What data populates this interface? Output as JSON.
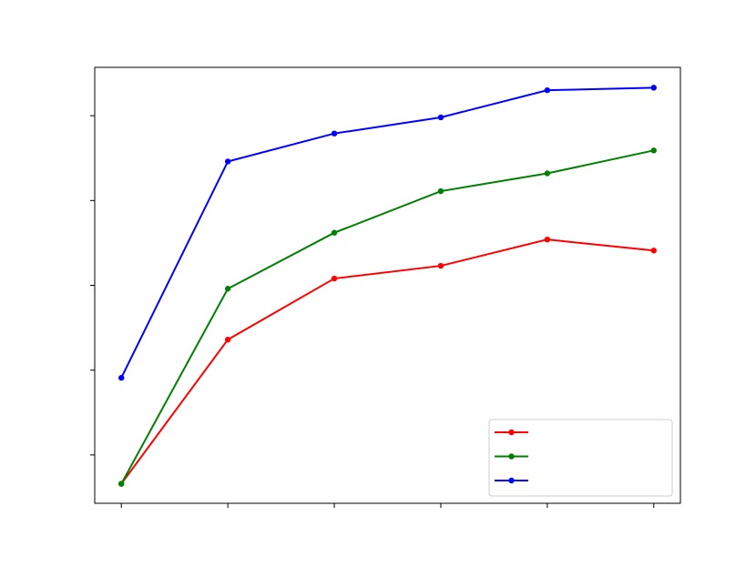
{
  "chart_data": {
    "type": "line",
    "x": [
      0,
      1,
      2,
      3,
      4,
      5
    ],
    "xlim": [
      -0.25,
      5.25
    ],
    "xticks": [
      0,
      1,
      2,
      3,
      4,
      5
    ],
    "ylim": [
      -0.57,
      4.57
    ],
    "yticks": [
      0,
      1,
      2,
      3,
      4
    ],
    "legend": "lower right",
    "series": [
      {
        "color": "#ff0000",
        "values": [
          -0.34,
          1.36,
          2.08,
          2.23,
          2.54,
          2.41
        ]
      },
      {
        "color": "#008000",
        "values": [
          -0.34,
          1.96,
          2.62,
          3.11,
          3.32,
          3.59
        ]
      },
      {
        "color": "#0000ff",
        "values": [
          0.91,
          3.46,
          3.79,
          3.98,
          4.3,
          4.33
        ]
      }
    ]
  }
}
